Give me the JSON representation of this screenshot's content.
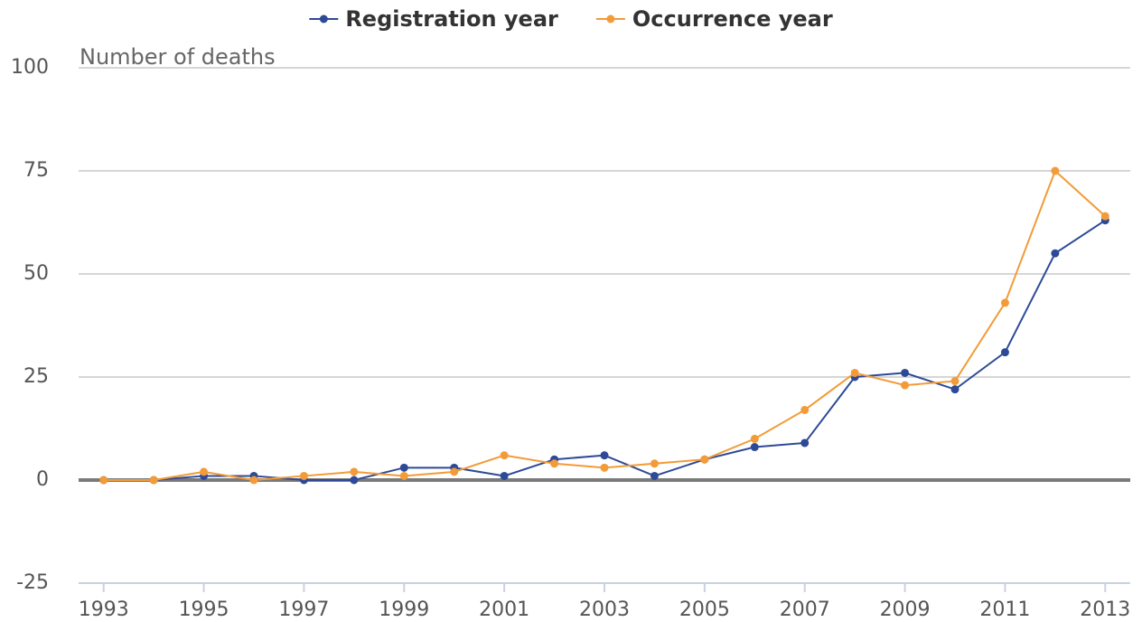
{
  "chart_data": {
    "type": "line",
    "y_axis_label": "Number of deaths",
    "x": [
      1993,
      1994,
      1995,
      1996,
      1997,
      1998,
      1999,
      2000,
      2001,
      2002,
      2003,
      2004,
      2005,
      2006,
      2007,
      2008,
      2009,
      2010,
      2011,
      2012,
      2013
    ],
    "series": [
      {
        "name": "Registration year",
        "color": "#2e4a97",
        "values": [
          0,
          0,
          1,
          1,
          0,
          0,
          3,
          3,
          1,
          5,
          6,
          1,
          5,
          8,
          9,
          25,
          26,
          22,
          31,
          55,
          63
        ]
      },
      {
        "name": "Occurrence year",
        "color": "#f29b38",
        "values": [
          0,
          0,
          2,
          0,
          1,
          2,
          1,
          2,
          6,
          4,
          3,
          4,
          5,
          10,
          17,
          26,
          23,
          24,
          43,
          75,
          64
        ]
      }
    ],
    "xlim": [
      1992.5,
      2013.5
    ],
    "xticks": [
      1993,
      1995,
      1997,
      1999,
      2001,
      2003,
      2005,
      2007,
      2009,
      2011,
      2013
    ],
    "ylim": [
      -25,
      100
    ],
    "yticks": [
      -25,
      0,
      25,
      50,
      75,
      100
    ],
    "grid": true,
    "legend": "top"
  }
}
